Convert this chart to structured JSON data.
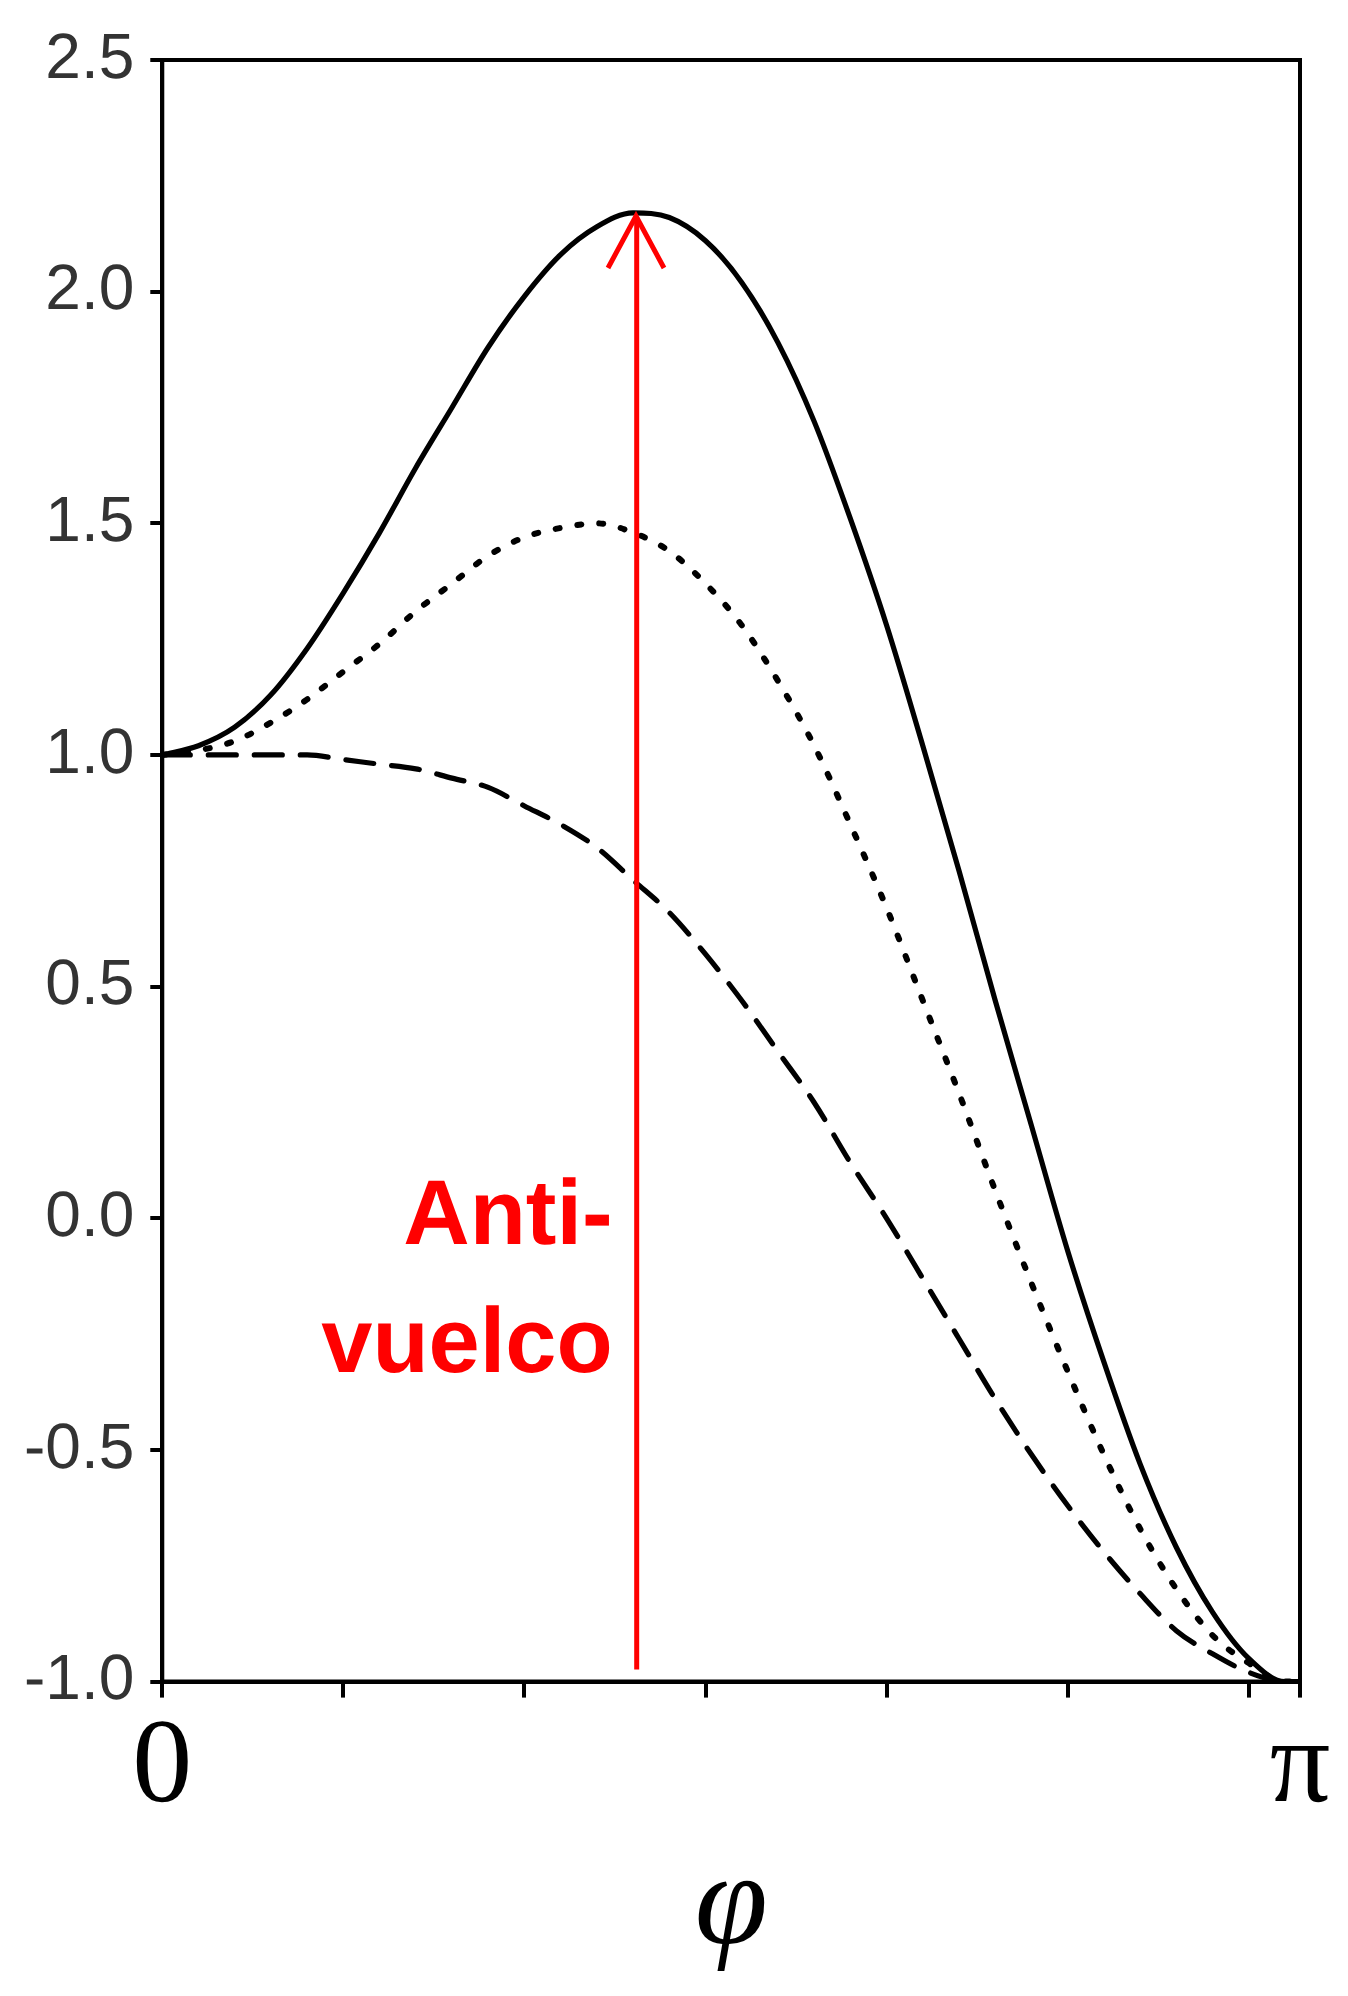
{
  "chart_data": {
    "type": "line",
    "xlabel": "φ",
    "x": [
      0,
      0.1,
      0.2,
      0.3,
      0.4,
      0.5,
      0.6,
      0.7,
      0.8,
      0.9,
      1.0,
      1.1,
      1.2,
      1.3,
      1.4,
      1.5,
      1.6,
      1.7,
      1.8,
      1.9,
      2.0,
      2.1,
      2.2,
      2.3,
      2.4,
      2.5,
      2.6,
      2.7,
      2.8,
      2.9,
      3.0,
      3.1,
      3.1416
    ],
    "series": [
      {
        "color": "#000000",
        "line_style": "solid",
        "values": [
          1.0,
          1.02,
          1.06,
          1.13,
          1.23,
          1.35,
          1.48,
          1.62,
          1.75,
          1.88,
          1.99,
          2.08,
          2.14,
          2.17,
          2.16,
          2.11,
          2.02,
          1.89,
          1.72,
          1.51,
          1.28,
          1.02,
          0.75,
          0.47,
          0.2,
          -0.07,
          -0.31,
          -0.53,
          -0.71,
          -0.85,
          -0.95,
          -1.0,
          -1.0
        ]
      },
      {
        "color": "#000000",
        "line_style": "dotted",
        "values": [
          1.0,
          1.01,
          1.03,
          1.07,
          1.12,
          1.18,
          1.24,
          1.31,
          1.37,
          1.43,
          1.47,
          1.49,
          1.5,
          1.48,
          1.44,
          1.37,
          1.28,
          1.16,
          1.02,
          0.85,
          0.67,
          0.47,
          0.27,
          0.06,
          -0.14,
          -0.33,
          -0.51,
          -0.67,
          -0.8,
          -0.9,
          -0.96,
          -1.0,
          -1.0
        ]
      },
      {
        "color": "#000000",
        "line_style": "dashed",
        "values": [
          1.0,
          1.0,
          1.0,
          1.0,
          1.0,
          0.99,
          0.98,
          0.97,
          0.95,
          0.93,
          0.89,
          0.85,
          0.8,
          0.73,
          0.66,
          0.57,
          0.47,
          0.36,
          0.25,
          0.12,
          0.0,
          -0.13,
          -0.26,
          -0.39,
          -0.51,
          -0.62,
          -0.72,
          -0.81,
          -0.89,
          -0.94,
          -0.98,
          -1.0,
          -1.0
        ]
      }
    ],
    "xlim": [
      0,
      3.1416
    ],
    "xticks": [
      {
        "value": 0,
        "label": "0"
      },
      {
        "value": 0.5,
        "label": null
      },
      {
        "value": 1.0,
        "label": null
      },
      {
        "value": 1.5,
        "label": null
      },
      {
        "value": 2.0,
        "label": null
      },
      {
        "value": 2.5,
        "label": null
      },
      {
        "value": 3.0,
        "label": null
      },
      {
        "value": 3.1416,
        "label": "π"
      }
    ],
    "ylim": [
      -1.0,
      2.5
    ],
    "yticks": [
      {
        "value": -1,
        "label": "-1.0"
      },
      {
        "value": -0.5,
        "label": "-0.5"
      },
      {
        "value": 0,
        "label": "0.0"
      },
      {
        "value": 0.5,
        "label": "0.5"
      },
      {
        "value": 1,
        "label": "1.0"
      },
      {
        "value": 1.5,
        "label": "1.5"
      },
      {
        "value": 2,
        "label": "2.0"
      },
      {
        "value": 2.5,
        "label": "2.5"
      }
    ],
    "ref_lines": [
      {
        "axis": "x",
        "value": 1.31,
        "label": "Anti-vuelco",
        "color": "#ff0000"
      }
    ],
    "grid": false,
    "legend": false,
    "marker": "none"
  }
}
